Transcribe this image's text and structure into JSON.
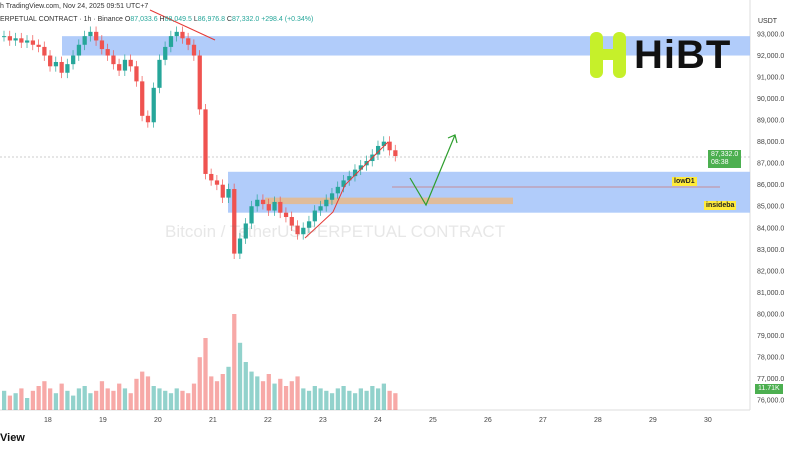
{
  "header": {
    "source": "h TradingView.com, Nov 24, 2025 09:51 UTC+7",
    "symbol": "ERPETUAL CONTRACT · 1h · Binance",
    "o_label": "O",
    "o": "87,033.6",
    "h_label": "H",
    "h": "88,049.5",
    "l_label": "L",
    "l": "86,976.8",
    "c_label": "C",
    "c": "87,332.0",
    "change": "+298.4 (+0.34%)"
  },
  "watermark": "Bitcoin / TetherUS PERPETUAL CONTRACT",
  "logo": {
    "text": "HiBT",
    "color": "#c6f02a"
  },
  "price_tag": {
    "price": "87,332.0",
    "countdown": "08:38"
  },
  "volume_tag": "11.71K",
  "annotations": {
    "low": "lowD1",
    "inside": "insideba"
  },
  "footer": "View",
  "colors": {
    "up": "#26a69a",
    "down": "#ef5350",
    "zone": "#a8c6fa",
    "orange": "#e8b889",
    "green": "#4caf50"
  },
  "chart_data": {
    "type": "candlestick",
    "currency": "USDT",
    "ylim": [
      75500,
      94000
    ],
    "y_ticks": [
      "93,000.0",
      "92,000.0",
      "91,000.0",
      "90,000.0",
      "89,000.0",
      "88,000.0",
      "87,000.0",
      "86,000.0",
      "85,000.0",
      "84,000.0",
      "83,000.0",
      "82,000.0",
      "81,000.0",
      "80,000.0",
      "79,000.0",
      "78,000.0",
      "77,000.0",
      "76,000.0"
    ],
    "x_ticks": [
      "18",
      "19",
      "20",
      "21",
      "22",
      "23",
      "24",
      "25",
      "26",
      "27",
      "28",
      "29",
      "30"
    ],
    "closes": [
      92900,
      92700,
      92800,
      92600,
      92700,
      92500,
      92400,
      92000,
      91500,
      91700,
      91200,
      91600,
      92000,
      92500,
      92900,
      93100,
      92700,
      92300,
      92000,
      91600,
      91300,
      91800,
      91500,
      90800,
      89200,
      88900,
      90500,
      91800,
      92400,
      92900,
      93100,
      92800,
      92500,
      92000,
      89500,
      86500,
      86200,
      86000,
      85400,
      85800,
      82800,
      83500,
      84200,
      85000,
      85300,
      85100,
      84800,
      85200,
      84700,
      84500,
      84100,
      83700,
      84000,
      84300,
      84800,
      85000,
      85300,
      85600,
      85900,
      86200,
      86400,
      86700,
      86900,
      87100,
      87400,
      87800,
      88000,
      87600,
      87332
    ],
    "volumes": [
      8,
      6,
      7,
      9,
      5,
      8,
      10,
      12,
      9,
      7,
      11,
      8,
      6,
      9,
      10,
      7,
      8,
      12,
      9,
      8,
      11,
      9,
      7,
      13,
      16,
      14,
      10,
      9,
      8,
      7,
      9,
      8,
      7,
      11,
      22,
      30,
      14,
      12,
      15,
      18,
      40,
      28,
      20,
      16,
      14,
      12,
      15,
      11,
      13,
      10,
      12,
      14,
      9,
      8,
      10,
      9,
      8,
      7,
      9,
      10,
      8,
      7,
      9,
      8,
      10,
      9,
      11,
      8,
      7
    ],
    "zones": [
      {
        "from": 92000,
        "to": 92900,
        "color": "blue"
      },
      {
        "from": 84700,
        "to": 86600,
        "color": "blue"
      },
      {
        "from": 85100,
        "to": 85400,
        "color": "orange"
      }
    ]
  }
}
